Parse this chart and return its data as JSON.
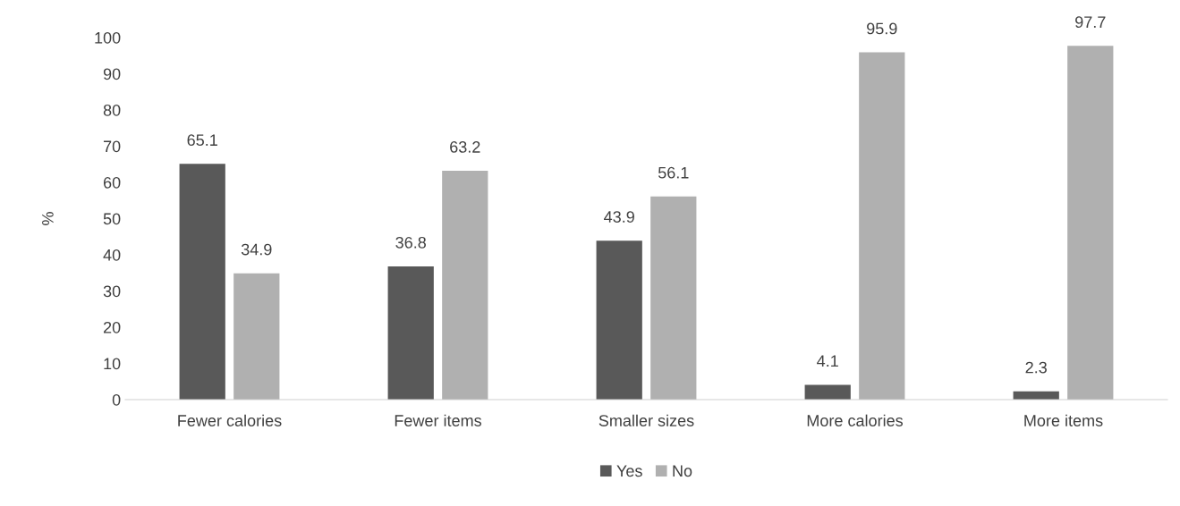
{
  "chart_data": {
    "type": "bar",
    "ylabel": "%",
    "categories": [
      "Fewer calories",
      "Fewer items",
      "Smaller sizes",
      "More calories",
      "More items"
    ],
    "series": [
      {
        "name": "Yes",
        "color": "#595959",
        "values": [
          65.1,
          36.8,
          43.9,
          4.1,
          2.3
        ]
      },
      {
        "name": "No",
        "color": "#b0b0b0",
        "values": [
          34.9,
          63.2,
          56.1,
          95.9,
          97.7
        ]
      }
    ],
    "ylim": [
      0,
      100
    ],
    "yticks": [
      0,
      10,
      20,
      30,
      40,
      50,
      60,
      70,
      80,
      90,
      100
    ],
    "data_labels": true,
    "grid": false,
    "legend": "bottom"
  }
}
